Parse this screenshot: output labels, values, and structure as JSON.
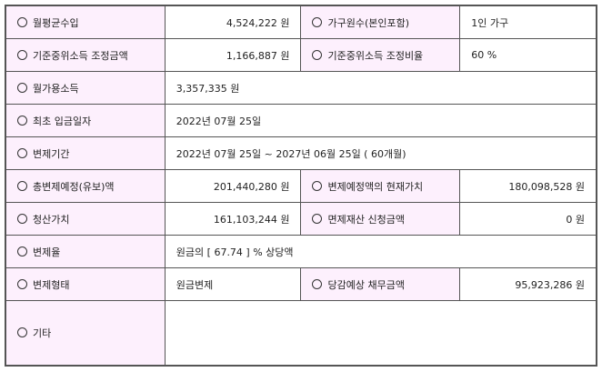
{
  "rows": [
    {
      "label": "월평균수입",
      "value": "4,524,222 원",
      "label2": "가구원수(본인포함)",
      "value2": "1인 가구"
    },
    {
      "label": "기준중위소득 조정금액",
      "value": "1,166,887 원",
      "label2": "기준중위소득 조정비율",
      "value2": "60 %"
    },
    {
      "label": "월가용소득",
      "value": "3,357,335 원"
    },
    {
      "label": "최초 입금일자",
      "value": "2022년 07월 25일"
    },
    {
      "label": "변제기간",
      "value": "2022년 07월 25일 ~ 2027년 06월 25일 ( 60개월)"
    },
    {
      "label": "총변제예정(유보)액",
      "value": "201,440,280 원",
      "label2": "변제예정액의 현재가치",
      "value2": "180,098,528 원"
    },
    {
      "label": "청산가치",
      "value": "161,103,244 원",
      "label2": "면제재산 신청금액",
      "value2": "0 원"
    },
    {
      "label": "변제율",
      "value": "원금의 [ 67.74 ] % 상당액"
    },
    {
      "label": "변제형태",
      "value": "원금변제",
      "label2": "당감예상 채무금액",
      "value2": "95,923,286 원"
    },
    {
      "label": "기타",
      "value": ""
    }
  ]
}
